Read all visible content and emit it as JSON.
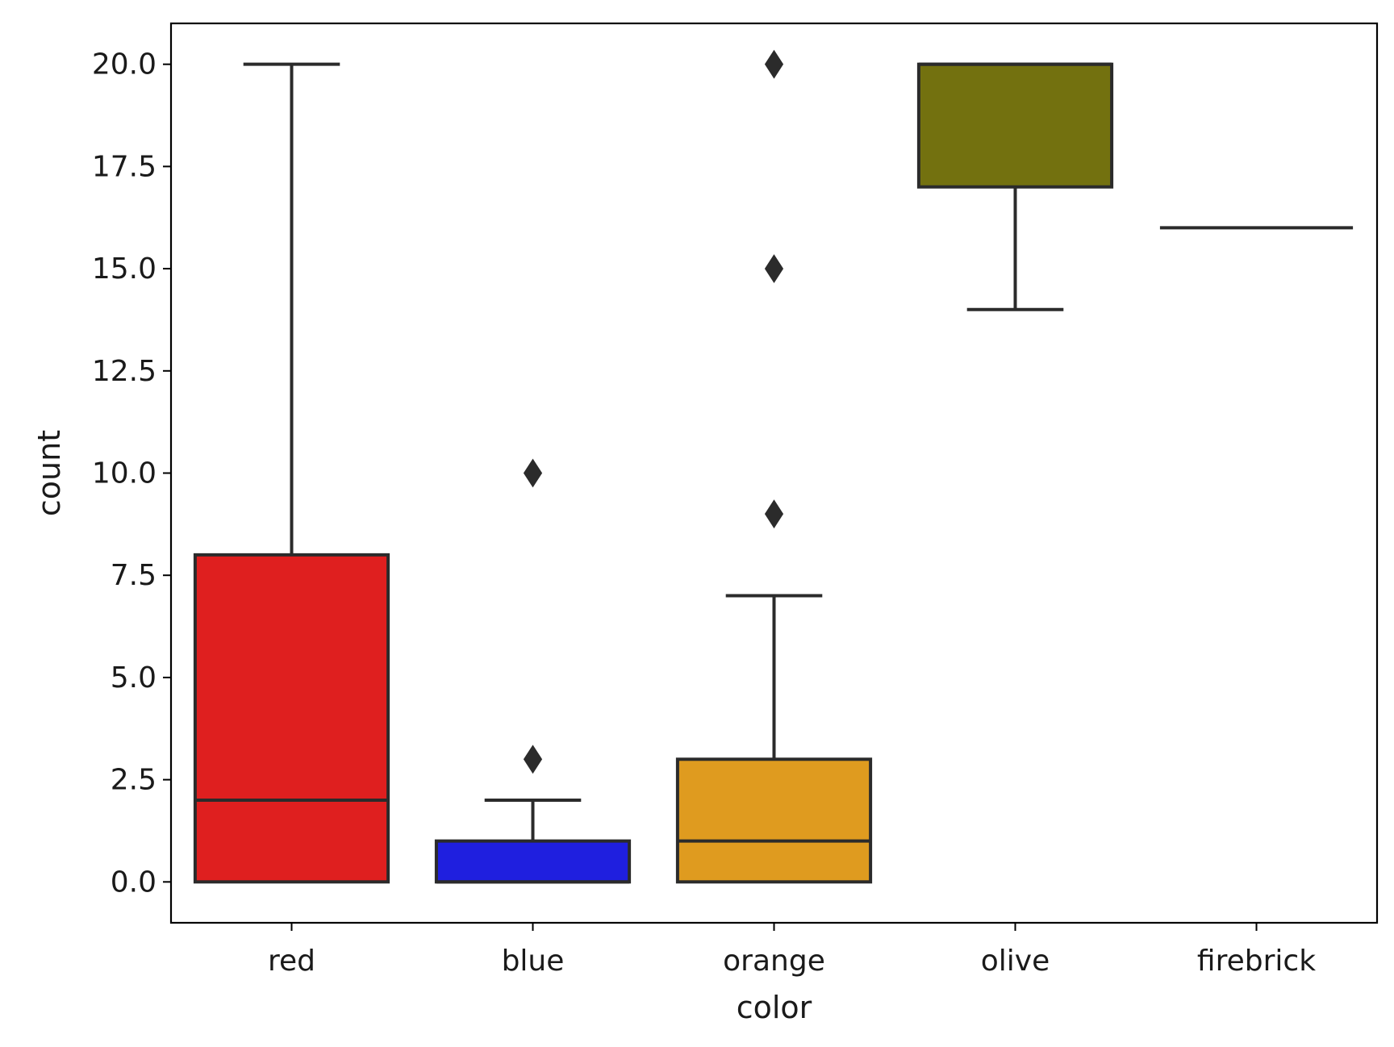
{
  "chart_data": {
    "type": "boxplot",
    "title": "",
    "xlabel": "color",
    "ylabel": "count",
    "ylim": [
      -1,
      21
    ],
    "yticks": [
      0.0,
      2.5,
      5.0,
      7.5,
      10.0,
      12.5,
      15.0,
      17.5,
      20.0
    ],
    "ytick_labels": [
      "0.0",
      "2.5",
      "5.0",
      "7.5",
      "10.0",
      "12.5",
      "15.0",
      "17.5",
      "20.0"
    ],
    "categories": [
      "red",
      "blue",
      "orange",
      "olive",
      "firebrick"
    ],
    "grid": false,
    "boxes": [
      {
        "category": "red",
        "color": "#df1f1f",
        "whisker_low": 0,
        "q1": 0,
        "median": 2,
        "q3": 8,
        "whisker_high": 20,
        "outliers": []
      },
      {
        "category": "blue",
        "color": "#1f1fdf",
        "whisker_low": 0,
        "q1": 0,
        "median": 0,
        "q3": 1,
        "whisker_high": 2,
        "outliers": [
          3,
          10
        ]
      },
      {
        "category": "orange",
        "color": "#df9b1f",
        "whisker_low": 0,
        "q1": 0,
        "median": 1,
        "q3": 3,
        "whisker_high": 7,
        "outliers": [
          9,
          15,
          20
        ]
      },
      {
        "category": "olive",
        "color": "#73710f",
        "whisker_low": 14,
        "q1": 17,
        "median": 20,
        "q3": 20,
        "whisker_high": 20,
        "outliers": []
      },
      {
        "category": "firebrick",
        "color": "#b22222",
        "whisker_low": 16,
        "q1": 16,
        "median": 16,
        "q3": 16,
        "whisker_high": 16,
        "outliers": []
      }
    ]
  }
}
